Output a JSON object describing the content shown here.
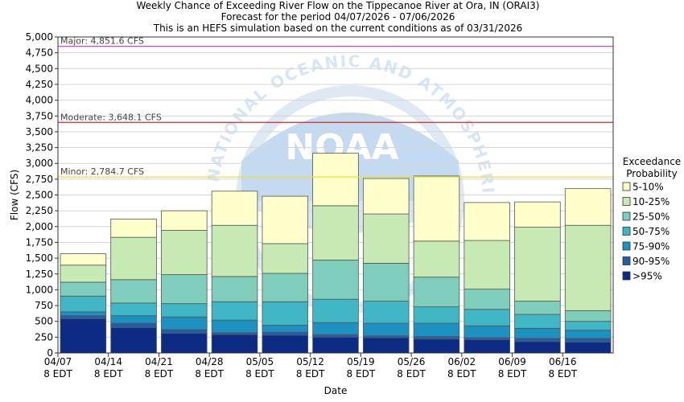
{
  "titles": {
    "line1": "Weekly Chance of Exceeding River Flow on the Tippecanoe River at Ora, IN (ORAI3)",
    "line2": "Forecast for the period 04/07/2026 - 07/06/2026",
    "line3": "This is an HEFS simulation based on the current conditions as of 03/31/2026"
  },
  "watermark": {
    "top_text": "NATIONAL OCEANIC AND ATMOSPHERIC ADMINISTRATION",
    "center_text": "NOAA"
  },
  "chart_data": {
    "type": "bar",
    "stacked": true,
    "xlabel": "Date",
    "ylabel": "Flow (CFS)",
    "ylim": [
      0,
      5000
    ],
    "ytick_step": 250,
    "yticks": [
      "0",
      "250",
      "500",
      "750",
      "1,000",
      "1,250",
      "1,500",
      "1,750",
      "2,000",
      "2,250",
      "2,500",
      "2,750",
      "3,000",
      "3,250",
      "3,500",
      "3,750",
      "4,000",
      "4,250",
      "4,500",
      "4,750",
      "5,000"
    ],
    "xticks": [
      {
        "date": "04/07",
        "time": "8 EDT"
      },
      {
        "date": "04/14",
        "time": "8 EDT"
      },
      {
        "date": "04/21",
        "time": "8 EDT"
      },
      {
        "date": "04/28",
        "time": "8 EDT"
      },
      {
        "date": "05/05",
        "time": "8 EDT"
      },
      {
        "date": "05/12",
        "time": "8 EDT"
      },
      {
        "date": "05/19",
        "time": "8 EDT"
      },
      {
        "date": "05/26",
        "time": "8 EDT"
      },
      {
        "date": "06/02",
        "time": "8 EDT"
      },
      {
        "date": "06/09",
        "time": "8 EDT"
      },
      {
        "date": "06/16",
        "time": "8 EDT"
      }
    ],
    "thresholds": [
      {
        "label": "Major: 4,851.6 CFS",
        "value": 4851.6,
        "color": "#cc33cc"
      },
      {
        "label": "Moderate: 3,648.1 CFS",
        "value": 3648.1,
        "color": "#dd2222"
      },
      {
        "label": "Minor: 2,784.7 CFS",
        "value": 2784.7,
        "color": "#e8e040"
      }
    ],
    "legend": {
      "title_line1": "Exceedance",
      "title_line2": "Probability",
      "placement": "right",
      "items": [
        {
          "label": "5-10%",
          "color": "#ffffcc"
        },
        {
          "label": "10-25%",
          "color": "#c7e9b4"
        },
        {
          "label": "25-50%",
          "color": "#7fcdbb"
        },
        {
          "label": "50-75%",
          "color": "#41b6c4"
        },
        {
          "label": "75-90%",
          "color": "#1d91c0"
        },
        {
          "label": "90-95%",
          "color": "#225ea8"
        },
        {
          "label": ">95%",
          "color": "#0c2c84"
        }
      ]
    },
    "bars": [
      {
        "levels": [
          540,
          590,
          650,
          900,
          1120,
          1390,
          1570
        ]
      },
      {
        "levels": [
          400,
          470,
          590,
          790,
          1160,
          1830,
          2120
        ]
      },
      {
        "levels": [
          310,
          370,
          570,
          780,
          1240,
          1940,
          2250
        ]
      },
      {
        "levels": [
          290,
          320,
          520,
          810,
          1210,
          2020,
          2560
        ]
      },
      {
        "levels": [
          280,
          330,
          440,
          810,
          1260,
          1730,
          2480
        ]
      },
      {
        "levels": [
          250,
          290,
          480,
          850,
          1470,
          2330,
          3160
        ]
      },
      {
        "levels": [
          240,
          270,
          470,
          820,
          1420,
          2200,
          2760
        ]
      },
      {
        "levels": [
          220,
          260,
          470,
          730,
          1200,
          1770,
          2800
        ]
      },
      {
        "levels": [
          210,
          240,
          430,
          690,
          1010,
          1780,
          2380
        ]
      },
      {
        "levels": [
          180,
          230,
          390,
          610,
          820,
          1990,
          2390
        ]
      },
      {
        "levels": [
          170,
          230,
          360,
          500,
          670,
          2020,
          2600
        ]
      }
    ]
  }
}
